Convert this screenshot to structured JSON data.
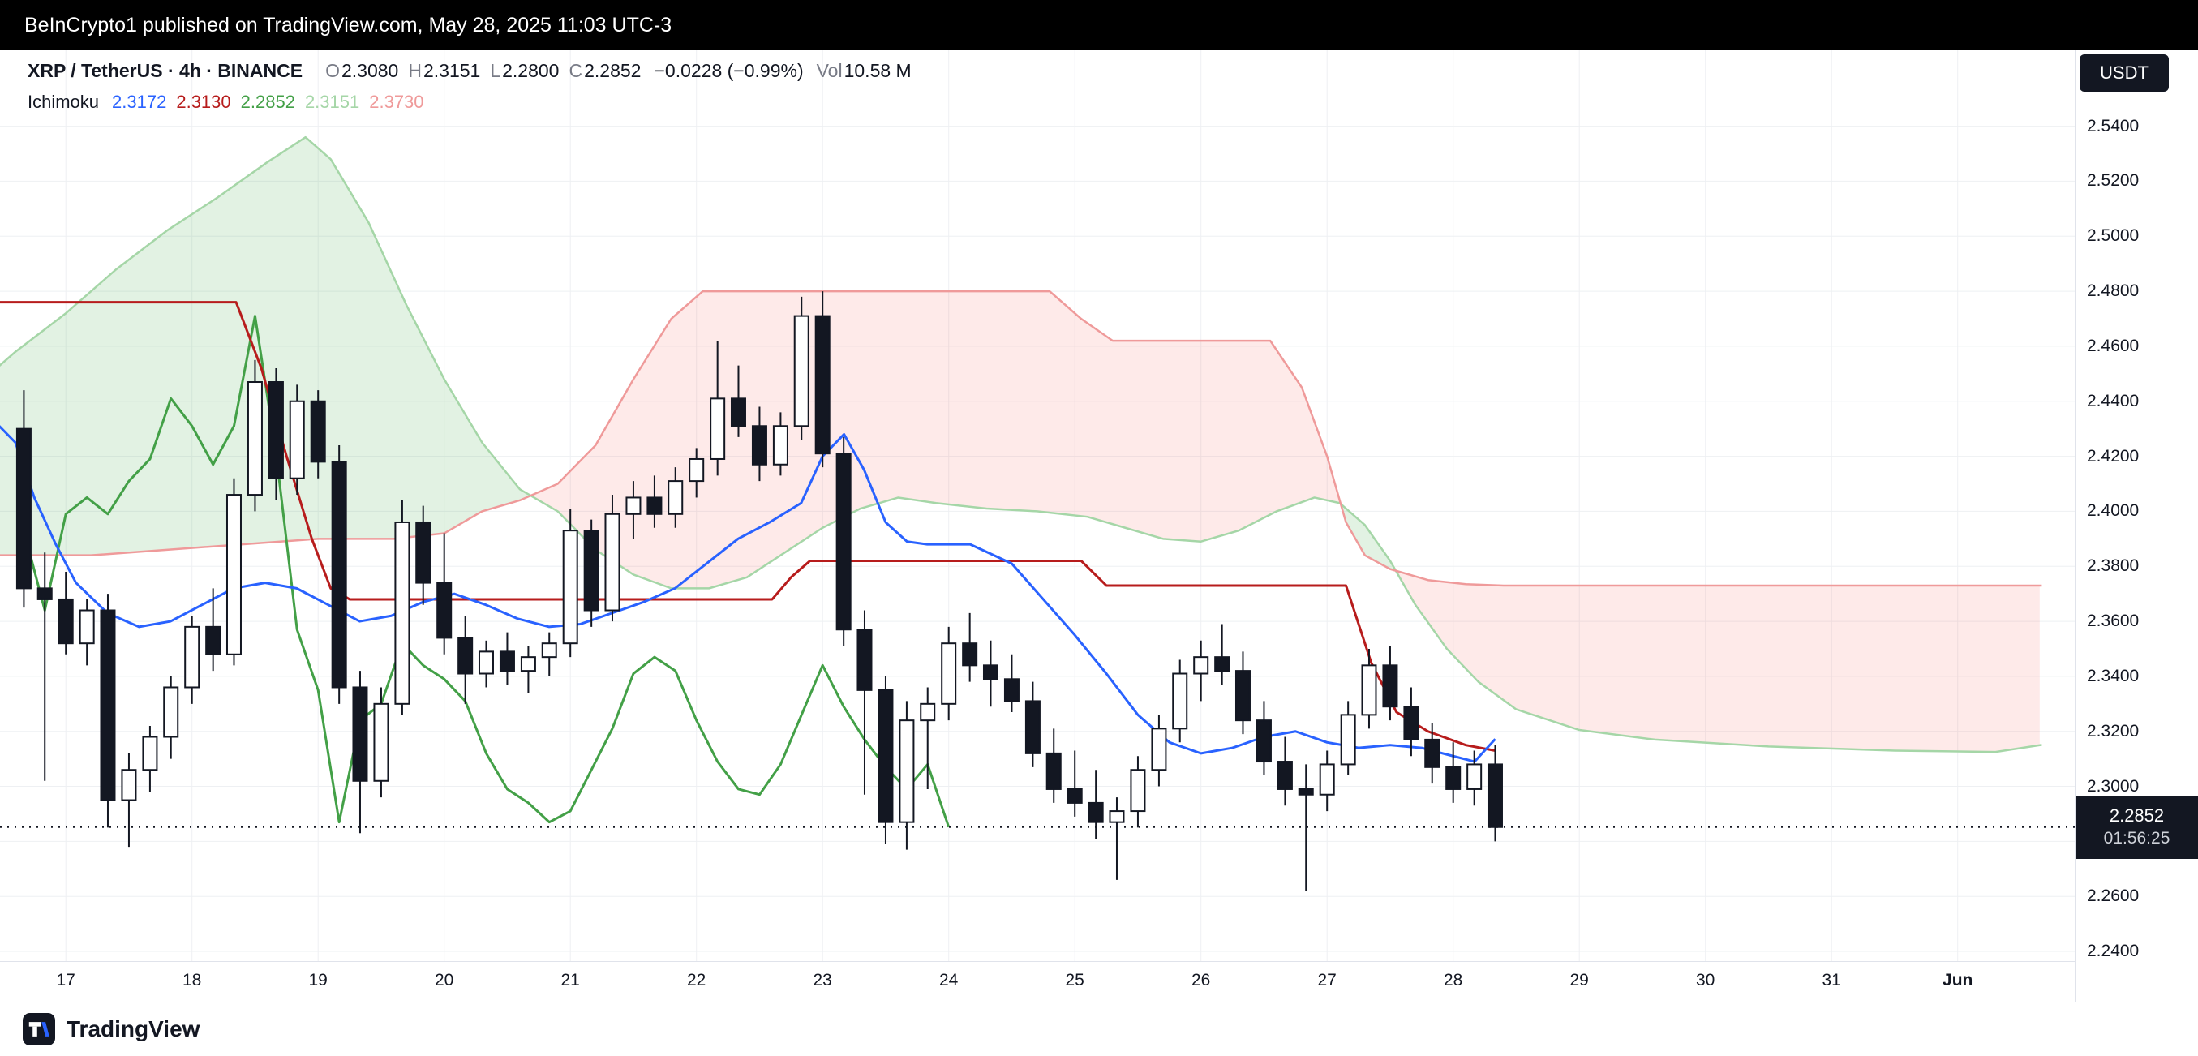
{
  "topbar": {
    "text": "BeInCrypto1 published on TradingView.com, May 28, 2025 11:03 UTC-3"
  },
  "header": {
    "symbol": "XRP / TetherUS · 4h · BINANCE",
    "ohlc": [
      {
        "label": "O",
        "value": "2.3080"
      },
      {
        "label": "H",
        "value": "2.3151"
      },
      {
        "label": "L",
        "value": "2.2800"
      },
      {
        "label": "C",
        "value": "2.2852"
      }
    ],
    "change": "−0.0228 (−0.99%)",
    "vol_label": "Vol",
    "vol_value": "10.58 M",
    "indicator": {
      "name": "Ichimoku",
      "values": [
        {
          "text": "2.3172",
          "color": "#2962ff"
        },
        {
          "text": "2.3130",
          "color": "#b71c1c"
        },
        {
          "text": "2.2852",
          "color": "#43a047"
        },
        {
          "text": "2.3151",
          "color": "#a5d6a7"
        },
        {
          "text": "2.3730",
          "color": "#ef9a9a"
        }
      ]
    }
  },
  "price_axis": {
    "currency": "USDT",
    "ticks": [
      {
        "label": "2.5400",
        "value": 2.54
      },
      {
        "label": "2.5200",
        "value": 2.52
      },
      {
        "label": "2.5000",
        "value": 2.5
      },
      {
        "label": "2.4800",
        "value": 2.48
      },
      {
        "label": "2.4600",
        "value": 2.46
      },
      {
        "label": "2.4400",
        "value": 2.44
      },
      {
        "label": "2.4200",
        "value": 2.42
      },
      {
        "label": "2.4000",
        "value": 2.4
      },
      {
        "label": "2.3800",
        "value": 2.38
      },
      {
        "label": "2.3600",
        "value": 2.36
      },
      {
        "label": "2.3400",
        "value": 2.34
      },
      {
        "label": "2.3200",
        "value": 2.32
      },
      {
        "label": "2.3000",
        "value": 2.3
      },
      {
        "label": "2.2800",
        "value": 2.28
      },
      {
        "label": "2.2600",
        "value": 2.26
      },
      {
        "label": "2.2400",
        "value": 2.24
      }
    ],
    "current": {
      "price": "2.2852",
      "countdown": "01:56:25"
    }
  },
  "time_axis": {
    "ticks": [
      {
        "label": "17",
        "day": 17
      },
      {
        "label": "18",
        "day": 18
      },
      {
        "label": "19",
        "day": 19
      },
      {
        "label": "20",
        "day": 20
      },
      {
        "label": "21",
        "day": 21
      },
      {
        "label": "22",
        "day": 22
      },
      {
        "label": "23",
        "day": 23
      },
      {
        "label": "24",
        "day": 24
      },
      {
        "label": "25",
        "day": 25
      },
      {
        "label": "26",
        "day": 26
      },
      {
        "label": "27",
        "day": 27
      },
      {
        "label": "28",
        "day": 28
      },
      {
        "label": "29",
        "day": 29
      },
      {
        "label": "30",
        "day": 30
      },
      {
        "label": "31",
        "day": 31
      },
      {
        "label": "Jun",
        "day": 32,
        "bold": true
      }
    ]
  },
  "footer": {
    "brand": "TradingView"
  },
  "chart_data": {
    "type": "candlestick",
    "title": "XRP / TetherUS 4h BINANCE with Ichimoku Cloud",
    "interval": "4h",
    "ylim": [
      2.2364,
      2.5564
    ],
    "xlim_days": [
      16.45,
      33.0
    ],
    "current_price": 2.2852,
    "countdown": "01:56:25",
    "chikou_shift": 26,
    "colors": {
      "grid": "#eef0f3",
      "candle": "#131722",
      "up_fill": "#ffffff",
      "tenkan": "#2962ff",
      "kijun": "#b71c1c",
      "chikou": "#43a047",
      "senkou_a": "#a5d6a7",
      "senkou_b": "#ef9a9a",
      "cloud_green": "rgba(76,175,80,0.16)",
      "cloud_red": "rgba(244,67,54,0.11)"
    },
    "candles": [
      [
        16.667,
        2.43,
        2.444,
        2.365,
        2.372
      ],
      [
        16.833,
        2.372,
        2.385,
        2.302,
        2.368
      ],
      [
        17.0,
        2.368,
        2.378,
        2.348,
        2.352
      ],
      [
        17.167,
        2.352,
        2.368,
        2.344,
        2.364
      ],
      [
        17.333,
        2.364,
        2.37,
        2.285,
        2.295
      ],
      [
        17.5,
        2.295,
        2.312,
        2.278,
        2.306
      ],
      [
        17.667,
        2.306,
        2.322,
        2.298,
        2.318
      ],
      [
        17.833,
        2.318,
        2.34,
        2.31,
        2.336
      ],
      [
        18.0,
        2.336,
        2.362,
        2.33,
        2.358
      ],
      [
        18.167,
        2.358,
        2.372,
        2.342,
        2.348
      ],
      [
        18.333,
        2.348,
        2.412,
        2.344,
        2.406
      ],
      [
        18.5,
        2.406,
        2.455,
        2.4,
        2.447
      ],
      [
        18.667,
        2.447,
        2.452,
        2.404,
        2.412
      ],
      [
        18.833,
        2.412,
        2.446,
        2.406,
        2.44
      ],
      [
        19.0,
        2.44,
        2.444,
        2.412,
        2.418
      ],
      [
        19.167,
        2.418,
        2.424,
        2.33,
        2.336
      ],
      [
        19.333,
        2.336,
        2.342,
        2.283,
        2.302
      ],
      [
        19.5,
        2.302,
        2.336,
        2.296,
        2.33
      ],
      [
        19.667,
        2.33,
        2.404,
        2.326,
        2.396
      ],
      [
        19.833,
        2.396,
        2.402,
        2.366,
        2.374
      ],
      [
        20.0,
        2.374,
        2.392,
        2.348,
        2.354
      ],
      [
        20.167,
        2.354,
        2.362,
        2.33,
        2.341
      ],
      [
        20.333,
        2.341,
        2.353,
        2.336,
        2.349
      ],
      [
        20.5,
        2.349,
        2.356,
        2.337,
        2.342
      ],
      [
        20.667,
        2.342,
        2.351,
        2.334,
        2.347
      ],
      [
        20.833,
        2.347,
        2.356,
        2.34,
        2.352
      ],
      [
        21.0,
        2.352,
        2.401,
        2.347,
        2.393
      ],
      [
        21.167,
        2.393,
        2.397,
        2.358,
        2.364
      ],
      [
        21.333,
        2.364,
        2.406,
        2.36,
        2.399
      ],
      [
        21.5,
        2.399,
        2.411,
        2.39,
        2.405
      ],
      [
        21.667,
        2.405,
        2.413,
        2.394,
        2.399
      ],
      [
        21.833,
        2.399,
        2.416,
        2.394,
        2.411
      ],
      [
        22.0,
        2.411,
        2.423,
        2.405,
        2.419
      ],
      [
        22.167,
        2.419,
        2.462,
        2.413,
        2.441
      ],
      [
        22.333,
        2.441,
        2.453,
        2.427,
        2.431
      ],
      [
        22.5,
        2.431,
        2.438,
        2.411,
        2.417
      ],
      [
        22.667,
        2.417,
        2.436,
        2.413,
        2.431
      ],
      [
        22.833,
        2.431,
        2.478,
        2.426,
        2.471
      ],
      [
        23.0,
        2.471,
        2.48,
        2.416,
        2.421
      ],
      [
        23.167,
        2.421,
        2.427,
        2.351,
        2.357
      ],
      [
        23.333,
        2.357,
        2.364,
        2.297,
        2.335
      ],
      [
        23.5,
        2.335,
        2.34,
        2.279,
        2.287
      ],
      [
        23.667,
        2.287,
        2.331,
        2.277,
        2.324
      ],
      [
        23.833,
        2.324,
        2.336,
        2.299,
        2.33
      ],
      [
        24.0,
        2.33,
        2.358,
        2.324,
        2.352
      ],
      [
        24.167,
        2.352,
        2.363,
        2.338,
        2.344
      ],
      [
        24.333,
        2.344,
        2.353,
        2.329,
        2.339
      ],
      [
        24.5,
        2.339,
        2.348,
        2.327,
        2.331
      ],
      [
        24.667,
        2.331,
        2.338,
        2.307,
        2.312
      ],
      [
        24.833,
        2.312,
        2.321,
        2.294,
        2.299
      ],
      [
        25.0,
        2.299,
        2.313,
        2.289,
        2.294
      ],
      [
        25.167,
        2.294,
        2.306,
        2.281,
        2.287
      ],
      [
        25.333,
        2.287,
        2.296,
        2.266,
        2.291
      ],
      [
        25.5,
        2.291,
        2.311,
        2.285,
        2.306
      ],
      [
        25.667,
        2.306,
        2.326,
        2.3,
        2.321
      ],
      [
        25.833,
        2.321,
        2.346,
        2.316,
        2.341
      ],
      [
        26.0,
        2.341,
        2.353,
        2.331,
        2.347
      ],
      [
        26.167,
        2.347,
        2.359,
        2.337,
        2.342
      ],
      [
        26.333,
        2.342,
        2.349,
        2.319,
        2.324
      ],
      [
        26.5,
        2.324,
        2.331,
        2.304,
        2.309
      ],
      [
        26.667,
        2.309,
        2.318,
        2.293,
        2.299
      ],
      [
        26.833,
        2.299,
        2.308,
        2.262,
        2.297
      ],
      [
        27.0,
        2.297,
        2.313,
        2.291,
        2.308
      ],
      [
        27.167,
        2.308,
        2.331,
        2.304,
        2.326
      ],
      [
        27.333,
        2.326,
        2.35,
        2.321,
        2.344
      ],
      [
        27.5,
        2.344,
        2.351,
        2.324,
        2.329
      ],
      [
        27.667,
        2.329,
        2.336,
        2.311,
        2.317
      ],
      [
        27.833,
        2.317,
        2.323,
        2.301,
        2.307
      ],
      [
        28.0,
        2.307,
        2.316,
        2.294,
        2.299
      ],
      [
        28.167,
        2.299,
        2.313,
        2.293,
        2.308
      ],
      [
        28.333,
        2.308,
        2.3151,
        2.28,
        2.2852
      ]
    ],
    "ichimoku": {
      "tenkan": [
        [
          16.45,
          2.432
        ],
        [
          16.6,
          2.425
        ],
        [
          16.75,
          2.405
        ],
        [
          16.92,
          2.388
        ],
        [
          17.08,
          2.374
        ],
        [
          17.33,
          2.363
        ],
        [
          17.58,
          2.358
        ],
        [
          17.83,
          2.36
        ],
        [
          18.08,
          2.366
        ],
        [
          18.33,
          2.372
        ],
        [
          18.58,
          2.374
        ],
        [
          18.83,
          2.372
        ],
        [
          19.08,
          2.366
        ],
        [
          19.33,
          2.36
        ],
        [
          19.58,
          2.362
        ],
        [
          19.83,
          2.367
        ],
        [
          20.08,
          2.37
        ],
        [
          20.33,
          2.366
        ],
        [
          20.58,
          2.361
        ],
        [
          20.83,
          2.358
        ],
        [
          21.08,
          2.359
        ],
        [
          21.33,
          2.363
        ],
        [
          21.58,
          2.367
        ],
        [
          21.83,
          2.372
        ],
        [
          22.08,
          2.381
        ],
        [
          22.33,
          2.39
        ],
        [
          22.58,
          2.396
        ],
        [
          22.83,
          2.403
        ],
        [
          23.0,
          2.42
        ],
        [
          23.17,
          2.428
        ],
        [
          23.33,
          2.415
        ],
        [
          23.5,
          2.396
        ],
        [
          23.67,
          2.389
        ],
        [
          23.83,
          2.388
        ],
        [
          24.17,
          2.388
        ],
        [
          24.5,
          2.381
        ],
        [
          24.75,
          2.368
        ],
        [
          25.0,
          2.355
        ],
        [
          25.25,
          2.341
        ],
        [
          25.5,
          2.326
        ],
        [
          25.75,
          2.316
        ],
        [
          26.0,
          2.312
        ],
        [
          26.25,
          2.314
        ],
        [
          26.5,
          2.318
        ],
        [
          26.75,
          2.32
        ],
        [
          27.0,
          2.316
        ],
        [
          27.25,
          2.314
        ],
        [
          27.5,
          2.315
        ],
        [
          27.75,
          2.314
        ],
        [
          28.0,
          2.311
        ],
        [
          28.17,
          2.309
        ],
        [
          28.333,
          2.3172
        ]
      ],
      "kijun": [
        [
          16.45,
          2.476
        ],
        [
          18.35,
          2.476
        ],
        [
          18.55,
          2.452
        ],
        [
          18.75,
          2.42
        ],
        [
          18.95,
          2.39
        ],
        [
          19.1,
          2.372
        ],
        [
          19.25,
          2.368
        ],
        [
          22.6,
          2.368
        ],
        [
          22.75,
          2.376
        ],
        [
          22.9,
          2.382
        ],
        [
          25.05,
          2.382
        ],
        [
          25.25,
          2.373
        ],
        [
          27.15,
          2.373
        ],
        [
          27.35,
          2.345
        ],
        [
          27.55,
          2.327
        ],
        [
          27.8,
          2.32
        ],
        [
          28.1,
          2.315
        ],
        [
          28.333,
          2.313
        ]
      ],
      "senkou_a": [
        [
          16.45,
          2.452
        ],
        [
          16.6,
          2.458
        ],
        [
          17.0,
          2.472
        ],
        [
          17.4,
          2.488
        ],
        [
          17.8,
          2.502
        ],
        [
          18.2,
          2.514
        ],
        [
          18.6,
          2.527
        ],
        [
          18.9,
          2.536
        ],
        [
          19.1,
          2.528
        ],
        [
          19.4,
          2.505
        ],
        [
          19.7,
          2.475
        ],
        [
          20.0,
          2.448
        ],
        [
          20.3,
          2.425
        ],
        [
          20.6,
          2.408
        ],
        [
          20.9,
          2.4
        ],
        [
          21.2,
          2.386
        ],
        [
          21.5,
          2.377
        ],
        [
          21.8,
          2.372
        ],
        [
          22.1,
          2.372
        ],
        [
          22.4,
          2.376
        ],
        [
          22.7,
          2.385
        ],
        [
          23.0,
          2.394
        ],
        [
          23.3,
          2.401
        ],
        [
          23.6,
          2.405
        ],
        [
          23.9,
          2.403
        ],
        [
          24.3,
          2.401
        ],
        [
          24.7,
          2.4
        ],
        [
          25.1,
          2.398
        ],
        [
          25.4,
          2.394
        ],
        [
          25.7,
          2.39
        ],
        [
          26.0,
          2.389
        ],
        [
          26.3,
          2.393
        ],
        [
          26.6,
          2.4
        ],
        [
          26.9,
          2.405
        ],
        [
          27.1,
          2.403
        ],
        [
          27.3,
          2.395
        ],
        [
          27.5,
          2.382
        ],
        [
          27.7,
          2.366
        ],
        [
          27.95,
          2.35
        ],
        [
          28.2,
          2.338
        ],
        [
          28.5,
          2.328
        ],
        [
          29.0,
          2.3205
        ],
        [
          29.6,
          2.317
        ],
        [
          30.5,
          2.3145
        ],
        [
          31.5,
          2.313
        ],
        [
          32.3,
          2.3125
        ],
        [
          32.667,
          2.3151
        ]
      ],
      "senkou_b": [
        [
          16.45,
          2.384
        ],
        [
          17.2,
          2.384
        ],
        [
          17.8,
          2.386
        ],
        [
          18.4,
          2.388
        ],
        [
          19.0,
          2.39
        ],
        [
          19.6,
          2.39
        ],
        [
          20.0,
          2.392
        ],
        [
          20.3,
          2.4
        ],
        [
          20.6,
          2.404
        ],
        [
          20.9,
          2.41
        ],
        [
          21.2,
          2.424
        ],
        [
          21.5,
          2.448
        ],
        [
          21.8,
          2.47
        ],
        [
          22.05,
          2.48
        ],
        [
          24.8,
          2.48
        ],
        [
          25.05,
          2.47
        ],
        [
          25.3,
          2.462
        ],
        [
          26.55,
          2.462
        ],
        [
          26.8,
          2.445
        ],
        [
          27.0,
          2.42
        ],
        [
          27.15,
          2.396
        ],
        [
          27.3,
          2.384
        ],
        [
          27.5,
          2.379
        ],
        [
          27.8,
          2.375
        ],
        [
          28.1,
          2.3735
        ],
        [
          28.4,
          2.373
        ],
        [
          32.667,
          2.373
        ]
      ]
    }
  }
}
